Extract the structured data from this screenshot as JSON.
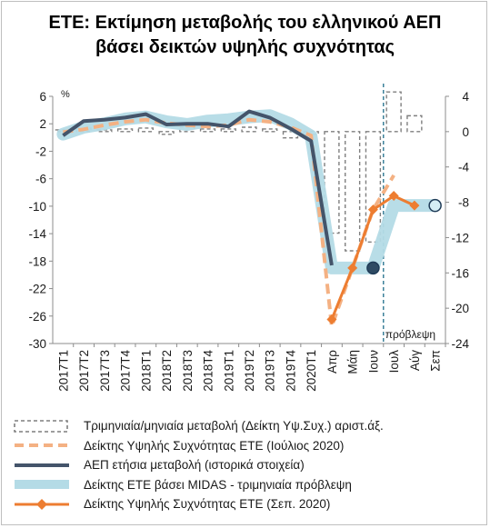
{
  "title": {
    "line1": "ΕΤΕ: Εκτίμηση μεταβολής του ελληνικού ΑΕΠ",
    "line2": "βάσει δεικτών υψηλής συχνότητας"
  },
  "chart_data": {
    "type": "line",
    "categories": [
      "2017Τ1",
      "2017Τ2",
      "2017Τ3",
      "2017Τ4",
      "2018Τ1",
      "2018Τ2",
      "2018Τ3",
      "2018Τ4",
      "2019Τ1",
      "2019Τ2",
      "2019Τ3",
      "2019Τ4",
      "2020Τ1",
      "Απρ",
      "Μάη",
      "Ιουν",
      "Ιουλ",
      "Αύγ",
      "Σεπ"
    ],
    "left_axis": {
      "unit_label": "%",
      "ylim": [
        -30,
        6
      ],
      "ticks": [
        6,
        2,
        -2,
        -6,
        -10,
        -14,
        -18,
        -22,
        -26,
        -30
      ]
    },
    "right_axis": {
      "ylim": [
        -24,
        4
      ],
      "ticks": [
        4,
        0,
        -4,
        -8,
        -12,
        -16,
        -20,
        -24
      ]
    },
    "forecast_label": "πρόβλεψη",
    "forecast_after": "Ιουν",
    "series": [
      {
        "name": "Τριμηνιαία/μηνιαία μεταβολή (Δείκτη Υψ.Συχ.) αριστ.άξ.",
        "kind": "bar-dashed",
        "axis": "right",
        "color": "#7f7f7f",
        "values": [
          0.2,
          0.4,
          0.2,
          0.3,
          0.4,
          -0.3,
          0.5,
          0.3,
          0.3,
          0.5,
          0.3,
          -0.7,
          -0.3,
          -11.5,
          -13.5,
          -12.5,
          4.5,
          1.8,
          null
        ]
      },
      {
        "name": "Δείκτης Υψηλής Συχνότητας ΕΤΕ (Ιούλιος 2020)",
        "kind": "line-dashed",
        "axis": "left",
        "color": "#f4b183",
        "values": [
          0.8,
          1.2,
          1.8,
          2.3,
          2.6,
          2.1,
          1.8,
          1.6,
          1.8,
          2.6,
          2.3,
          1.5,
          0.3,
          -27.5,
          -19,
          -10.5,
          -5.5,
          null,
          null
        ]
      },
      {
        "name": "ΑΕΠ ετήσια μεταβολή (ιστορικά στοιχεία)",
        "kind": "line",
        "axis": "left",
        "color": "#44546a",
        "values": [
          0.3,
          2.4,
          2.6,
          2.9,
          3.4,
          1.9,
          2.0,
          2.0,
          1.6,
          3.8,
          2.9,
          1.3,
          -0.5,
          -18.6,
          null,
          null,
          null,
          null,
          null
        ]
      },
      {
        "name": "Δείκτης ΕΤΕ βάσει MIDAS - τριμηνιαία πρόβλεψη",
        "kind": "band",
        "axis": "left",
        "color": "#b4dbe6",
        "values": [
          0.5,
          1.5,
          2.0,
          2.7,
          3.0,
          2.3,
          1.9,
          2.4,
          2.6,
          3.0,
          3.2,
          2.0,
          0.2,
          -19,
          -19,
          -19,
          -9.9,
          -9.9,
          -9.9
        ],
        "markers": [
          {
            "category": "Ιουν",
            "value": -19
          },
          {
            "category": "Σεπ",
            "value": -9.9
          }
        ]
      },
      {
        "name": "Δείκτης Υψηλής Συχνότητας ΕΤΕ (Σεπ. 2020)",
        "kind": "line-diamond",
        "axis": "left",
        "color": "#ed7d31",
        "values": [
          null,
          null,
          null,
          null,
          null,
          null,
          null,
          null,
          null,
          null,
          null,
          null,
          null,
          -26.5,
          -19,
          -10.5,
          -8.5,
          -9.9,
          null
        ]
      }
    ]
  },
  "legend": [
    {
      "label": "Τριμηνιαία/μηνιαία μεταβολή (Δείκτη Υψ.Συχ.) αριστ.άξ.",
      "style": "dashed-box"
    },
    {
      "label": "Δείκτης Υψηλής Συχνότητας ΕΤΕ (Ιούλιος 2020)",
      "style": "dashed-orange"
    },
    {
      "label": "ΑΕΠ ετήσια μεταβολή (ιστορικά στοιχεία)",
      "style": "navy-line"
    },
    {
      "label": "Δείκτης ΕΤΕ βάσει MIDAS - τριμηνιαία πρόβλεψη",
      "style": "band"
    },
    {
      "label": "Δείκτης Υψηλής Συχνότητας ΕΤΕ (Σεπ. 2020)",
      "style": "orange-diamond"
    }
  ]
}
